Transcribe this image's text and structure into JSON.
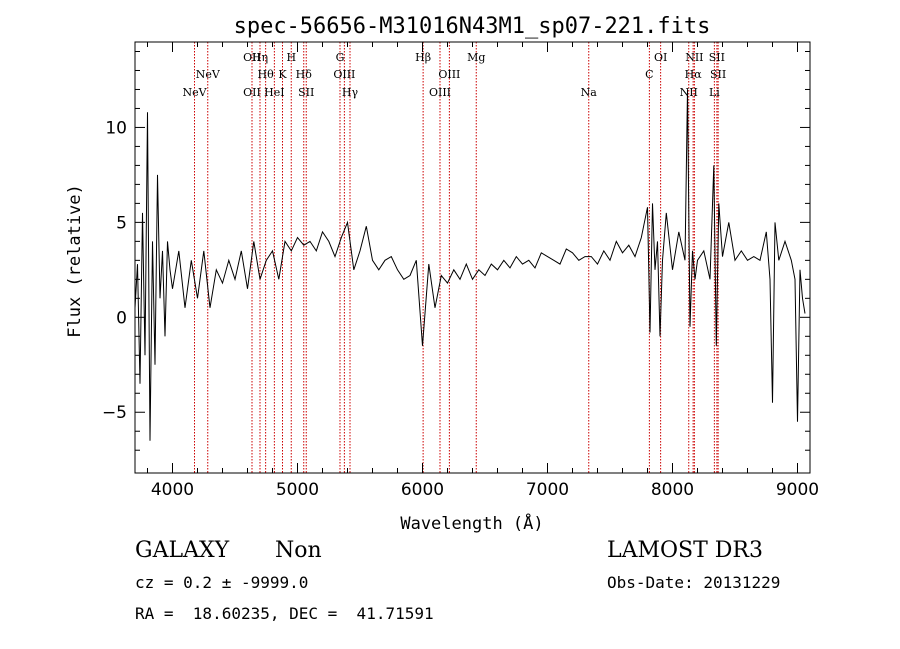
{
  "chart_data": {
    "type": "line",
    "title": "spec-56656-M31016N43M1_sp07-221.fits",
    "xlabel": "Wavelength (Å)",
    "ylabel": "Flux (relative)",
    "xlim": [
      3700,
      9100
    ],
    "ylim": [
      -8.2,
      14.5
    ],
    "xticks": [
      4000,
      5000,
      6000,
      7000,
      8000,
      9000
    ],
    "yticks": [
      -5,
      0,
      5,
      10
    ],
    "xtick_labels": [
      "4000",
      "5000",
      "6000",
      "7000",
      "8000",
      "9000"
    ],
    "ytick_labels": [
      "−5",
      "0",
      "5",
      "10"
    ],
    "line_color": "#000000",
    "marker_color": "#cc0000",
    "spectrum": {
      "x": [
        3700,
        3720,
        3740,
        3760,
        3780,
        3800,
        3820,
        3840,
        3860,
        3880,
        3900,
        3920,
        3940,
        3960,
        3980,
        4000,
        4050,
        4100,
        4150,
        4200,
        4250,
        4300,
        4350,
        4400,
        4450,
        4500,
        4550,
        4600,
        4650,
        4700,
        4750,
        4800,
        4850,
        4900,
        4950,
        5000,
        5050,
        5100,
        5150,
        5200,
        5250,
        5300,
        5350,
        5400,
        5450,
        5500,
        5550,
        5600,
        5650,
        5700,
        5750,
        5800,
        5850,
        5900,
        5950,
        6000,
        6050,
        6100,
        6150,
        6200,
        6250,
        6300,
        6350,
        6400,
        6450,
        6500,
        6550,
        6600,
        6650,
        6700,
        6750,
        6800,
        6850,
        6900,
        6950,
        7000,
        7050,
        7100,
        7150,
        7200,
        7250,
        7300,
        7350,
        7400,
        7450,
        7500,
        7550,
        7600,
        7650,
        7700,
        7750,
        7800,
        7820,
        7840,
        7860,
        7880,
        7900,
        7920,
        7950,
        8000,
        8050,
        8100,
        8120,
        8140,
        8160,
        8180,
        8200,
        8250,
        8300,
        8330,
        8350,
        8370,
        8400,
        8450,
        8500,
        8550,
        8600,
        8650,
        8700,
        8750,
        8780,
        8800,
        8820,
        8850,
        8900,
        8950,
        8980,
        9000,
        9020,
        9040,
        9060
      ],
      "y": [
        0.5,
        2.8,
        -3.5,
        5.5,
        -2.0,
        10.8,
        -6.5,
        4.0,
        -2.5,
        7.5,
        1.0,
        3.5,
        -1.0,
        4.0,
        2.5,
        1.5,
        3.5,
        0.5,
        3.0,
        1.0,
        3.5,
        0.5,
        2.5,
        1.8,
        3.0,
        2.0,
        3.5,
        1.5,
        4.0,
        2.0,
        3.0,
        3.5,
        2.0,
        4.0,
        3.5,
        4.2,
        3.8,
        4.0,
        3.5,
        4.5,
        4.0,
        3.2,
        4.2,
        5.0,
        2.5,
        3.5,
        4.8,
        3.0,
        2.5,
        3.0,
        3.2,
        2.5,
        2.0,
        2.2,
        3.0,
        -1.5,
        2.8,
        0.5,
        2.2,
        1.8,
        2.5,
        2.0,
        2.8,
        2.0,
        2.5,
        2.2,
        2.8,
        2.5,
        3.0,
        2.6,
        3.2,
        2.8,
        3.0,
        2.6,
        3.4,
        3.2,
        3.0,
        2.8,
        3.6,
        3.4,
        3.0,
        3.2,
        3.2,
        2.8,
        3.5,
        3.0,
        4.0,
        3.4,
        3.8,
        3.2,
        4.2,
        5.8,
        -0.8,
        6.0,
        2.5,
        4.0,
        -1.0,
        3.0,
        5.5,
        2.5,
        4.5,
        3.0,
        12.0,
        -0.5,
        3.5,
        2.0,
        3.0,
        3.5,
        2.0,
        8.0,
        -1.5,
        6.0,
        3.2,
        5.0,
        3.0,
        3.5,
        3.0,
        3.2,
        3.0,
        4.5,
        2.0,
        -4.5,
        5.0,
        3.0,
        4.0,
        3.0,
        2.0,
        -5.5,
        2.5,
        1.0,
        0.2
      ]
    },
    "line_markers": [
      {
        "wave": 4176,
        "label": "NeV",
        "row": 3
      },
      {
        "wave": 4282,
        "label": "NeV",
        "row": 2
      },
      {
        "wave": 4636,
        "label": "OII",
        "row": 1
      },
      {
        "wave": 4636,
        "label": "OII",
        "row": 3
      },
      {
        "wave": 4700,
        "label": "Hη",
        "row": 1
      },
      {
        "wave": 4745,
        "label": "Hθ",
        "row": 2
      },
      {
        "wave": 4815,
        "label": "HeI",
        "row": 3
      },
      {
        "wave": 4880,
        "label": "K",
        "row": 2
      },
      {
        "wave": 4950,
        "label": "H",
        "row": 1
      },
      {
        "wave": 5050,
        "label": "Hδ",
        "row": 2
      },
      {
        "wave": 5070,
        "label": "SII",
        "row": 3
      },
      {
        "wave": 5340,
        "label": "G",
        "row": 1
      },
      {
        "wave": 5375,
        "label": "OIII",
        "row": 2
      },
      {
        "wave": 5420,
        "label": "Hγ",
        "row": 3
      },
      {
        "wave": 6005,
        "label": "Hβ",
        "row": 1
      },
      {
        "wave": 6140,
        "label": "OIII",
        "row": 3
      },
      {
        "wave": 6215,
        "label": "OIII",
        "row": 2
      },
      {
        "wave": 6430,
        "label": "Mg",
        "row": 1
      },
      {
        "wave": 7330,
        "label": "Na",
        "row": 3
      },
      {
        "wave": 7815,
        "label": "C",
        "row": 2
      },
      {
        "wave": 7905,
        "label": "OI",
        "row": 1
      },
      {
        "wave": 8130,
        "label": "NII",
        "row": 3
      },
      {
        "wave": 8165,
        "label": "Hα",
        "row": 2
      },
      {
        "wave": 8175,
        "label": "NII",
        "row": 1
      },
      {
        "wave": 8335,
        "label": "Li",
        "row": 3
      },
      {
        "wave": 8355,
        "label": "SII",
        "row": 1
      },
      {
        "wave": 8365,
        "label": "SII",
        "row": 2
      }
    ]
  },
  "info": {
    "object_class": "GALAXY",
    "subclass": "Non",
    "survey": "LAMOST DR3",
    "redshift_line": "cz = 0.2 ± -9999.0",
    "obs_date_line": "Obs-Date: 20131229",
    "coord_line": "RA =  18.60235, DEC =  41.71591"
  }
}
